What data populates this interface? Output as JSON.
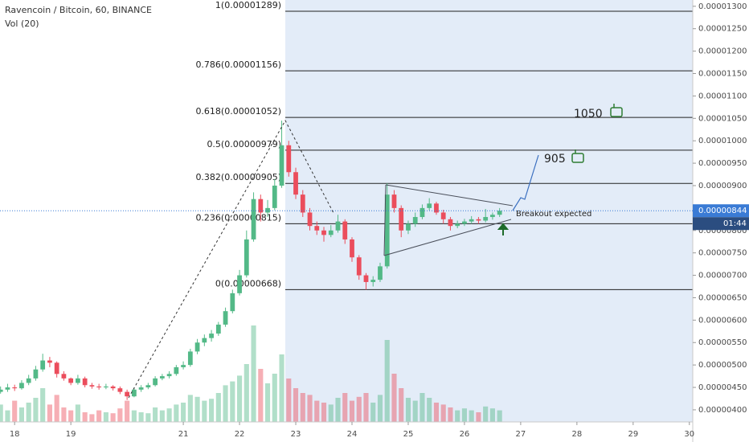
{
  "chart_data": {
    "type": "candlestick",
    "title": "Ravencoin / Bitcoin, 60, BINANCE",
    "volume_label": "Vol (20)",
    "up_color": "#53b987",
    "down_color": "#eb4d5c",
    "xlim": [
      17.74,
      30.06
    ],
    "xticks": [
      18,
      19,
      21,
      22,
      23,
      24,
      25,
      26,
      27,
      28,
      29,
      30
    ],
    "ylim": [
      3.73e-06,
      1.314e-05
    ],
    "yticks": [
      {
        "value": 4e-06,
        "label": "0.00000400"
      },
      {
        "value": 4.5e-06,
        "label": "0.00000450"
      },
      {
        "value": 5e-06,
        "label": "0.00000500"
      },
      {
        "value": 5.5e-06,
        "label": "0.00000550"
      },
      {
        "value": 6e-06,
        "label": "0.00000600"
      },
      {
        "value": 6.5e-06,
        "label": "0.00000650"
      },
      {
        "value": 7e-06,
        "label": "0.00000700"
      },
      {
        "value": 7.5e-06,
        "label": "0.00000750"
      },
      {
        "value": 8e-06,
        "label": "0.00000800"
      },
      {
        "value": 8.5e-06,
        "label": "0.00000850"
      },
      {
        "value": 9e-06,
        "label": "0.00000900"
      },
      {
        "value": 9.5e-06,
        "label": "0.00000950"
      },
      {
        "value": 1e-05,
        "label": "0.00001000"
      },
      {
        "value": 1.05e-05,
        "label": "0.00001050"
      },
      {
        "value": 1.1e-05,
        "label": "0.00001100"
      },
      {
        "value": 1.15e-05,
        "label": "0.00001150"
      },
      {
        "value": 1.2e-05,
        "label": "0.00001200"
      },
      {
        "value": 1.25e-05,
        "label": "0.00001250"
      },
      {
        "value": 1.3e-05,
        "label": "0.00001300"
      }
    ],
    "grid": false,
    "fib_levels": [
      {
        "label": "1(0.00001289)",
        "value": 1.289e-05
      },
      {
        "label": "0.786(0.00001156)",
        "value": 1.156e-05
      },
      {
        "label": "0.618(0.00001052)",
        "value": 1.052e-05
      },
      {
        "label": "0.5(0.00000979)",
        "value": 9.79e-06
      },
      {
        "label": "0.382(0.00000905)",
        "value": 9.05e-06
      },
      {
        "label": "0.236(0.00000815)",
        "value": 8.15e-06
      },
      {
        "label": "0(0.00000668)",
        "value": 6.68e-06
      }
    ],
    "current_price": {
      "value": 8.44e-06,
      "label": "0.00000844"
    },
    "countdown": "01:44",
    "annotations": [
      "1050",
      "905",
      "Breakout expected"
    ],
    "x": [
      17.75,
      17.875,
      18,
      18.125,
      18.25,
      18.375,
      18.5,
      18.625,
      18.75,
      18.875,
      19,
      19.125,
      19.25,
      19.375,
      19.5,
      19.625,
      19.75,
      19.875,
      20,
      20.125,
      20.25,
      20.375,
      20.5,
      20.625,
      20.75,
      20.875,
      21,
      21.125,
      21.25,
      21.375,
      21.5,
      21.625,
      21.75,
      21.875,
      22,
      22.125,
      22.25,
      22.375,
      22.5,
      22.625,
      22.75,
      22.875,
      23,
      23.125,
      23.25,
      23.375,
      23.5,
      23.625,
      23.75,
      23.875,
      24,
      24.125,
      24.25,
      24.375,
      24.5,
      24.625,
      24.75,
      24.875,
      25,
      25.125,
      25.25,
      25.375,
      25.5,
      25.625,
      25.75,
      25.875,
      26,
      26.125,
      26.25,
      26.375,
      26.5,
      26.625
    ],
    "candles": [
      [
        4.4e-06,
        4.52e-06,
        4.36e-06,
        4.45e-06
      ],
      [
        4.45e-06,
        4.58e-06,
        4.4e-06,
        4.5e-06
      ],
      [
        4.5e-06,
        4.56e-06,
        4.42e-06,
        4.48e-06
      ],
      [
        4.48e-06,
        4.66e-06,
        4.45e-06,
        4.6e-06
      ],
      [
        4.6e-06,
        4.78e-06,
        4.55e-06,
        4.7e-06
      ],
      [
        4.7e-06,
        4.98e-06,
        4.65e-06,
        4.9e-06
      ],
      [
        4.9e-06,
        5.25e-06,
        4.85e-06,
        5.1e-06
      ],
      [
        5.1e-06,
        5.18e-06,
        4.95e-06,
        5.05e-06
      ],
      [
        5.05e-06,
        5.08e-06,
        4.72e-06,
        4.8e-06
      ],
      [
        4.8e-06,
        4.86e-06,
        4.65e-06,
        4.7e-06
      ],
      [
        4.7e-06,
        4.72e-06,
        4.55e-06,
        4.6e-06
      ],
      [
        4.6e-06,
        4.78e-06,
        4.56e-06,
        4.7e-06
      ],
      [
        4.7e-06,
        4.74e-06,
        4.5e-06,
        4.55e-06
      ],
      [
        4.55e-06,
        4.6e-06,
        4.47e-06,
        4.52e-06
      ],
      [
        4.52e-06,
        4.58e-06,
        4.45e-06,
        4.5e-06
      ],
      [
        4.5e-06,
        4.58e-06,
        4.46e-06,
        4.52e-06
      ],
      [
        4.52e-06,
        4.55e-06,
        4.43e-06,
        4.48e-06
      ],
      [
        4.48e-06,
        4.52e-06,
        4.35e-06,
        4.4e-06
      ],
      [
        4.4e-06,
        4.45e-06,
        4.22e-06,
        4.3e-06
      ],
      [
        4.3e-06,
        4.5e-06,
        4.28e-06,
        4.45e-06
      ],
      [
        4.45e-06,
        4.55e-06,
        4.4e-06,
        4.5e-06
      ],
      [
        4.5e-06,
        4.6e-06,
        4.46e-06,
        4.55e-06
      ],
      [
        4.55e-06,
        4.75e-06,
        4.52e-06,
        4.7e-06
      ],
      [
        4.7e-06,
        4.8e-06,
        4.66e-06,
        4.75e-06
      ],
      [
        4.75e-06,
        4.86e-06,
        4.7e-06,
        4.8e-06
      ],
      [
        4.8e-06,
        5e-06,
        4.76e-06,
        4.95e-06
      ],
      [
        4.95e-06,
        5.08e-06,
        4.9e-06,
        5e-06
      ],
      [
        5e-06,
        5.36e-06,
        4.96e-06,
        5.3e-06
      ],
      [
        5.3e-06,
        5.58e-06,
        5.24e-06,
        5.5e-06
      ],
      [
        5.5e-06,
        5.68e-06,
        5.42e-06,
        5.6e-06
      ],
      [
        5.6e-06,
        5.78e-06,
        5.52e-06,
        5.7e-06
      ],
      [
        5.7e-06,
        5.96e-06,
        5.65e-06,
        5.9e-06
      ],
      [
        5.9e-06,
        6.28e-06,
        5.85e-06,
        6.2e-06
      ],
      [
        6.2e-06,
        6.68e-06,
        6.15e-06,
        6.6e-06
      ],
      [
        6.6e-06,
        7.12e-06,
        6.55e-06,
        7e-06
      ],
      [
        7e-06,
        8e-06,
        6.95e-06,
        7.8e-06
      ],
      [
        7.8e-06,
        8.85e-06,
        7.75e-06,
        8.7e-06
      ],
      [
        8.7e-06,
        8.8e-06,
        8.2e-06,
        8.4e-06
      ],
      [
        8.4e-06,
        8.68e-06,
        8.3e-06,
        8.5e-06
      ],
      [
        8.5e-06,
        9.15e-06,
        8.45e-06,
        9e-06
      ],
      [
        9e-06,
        1.045e-05,
        8.95e-06,
        9.9e-06
      ],
      [
        9.9e-06,
        1e-05,
        9.2e-06,
        9.3e-06
      ],
      [
        9.3e-06,
        9.4e-06,
        8.7e-06,
        8.8e-06
      ],
      [
        8.8e-06,
        8.9e-06,
        8.3e-06,
        8.4e-06
      ],
      [
        8.4e-06,
        8.5e-06,
        8e-06,
        8.1e-06
      ],
      [
        8.1e-06,
        8.2e-06,
        7.9e-06,
        8e-06
      ],
      [
        8e-06,
        8.08e-06,
        7.75e-06,
        7.9e-06
      ],
      [
        7.9e-06,
        8.12e-06,
        7.85e-06,
        8e-06
      ],
      [
        8e-06,
        8.35e-06,
        7.95e-06,
        8.2e-06
      ],
      [
        8.2e-06,
        8.25e-06,
        7.7e-06,
        7.8e-06
      ],
      [
        7.8e-06,
        7.85e-06,
        7.3e-06,
        7.4e-06
      ],
      [
        7.4e-06,
        7.45e-06,
        6.9e-06,
        7e-06
      ],
      [
        7e-06,
        7.05e-06,
        6.68e-06,
        6.85e-06
      ],
      [
        6.85e-06,
        6.98e-06,
        6.75e-06,
        6.9e-06
      ],
      [
        6.9e-06,
        7.28e-06,
        6.85e-06,
        7.2e-06
      ],
      [
        7.2e-06,
        9.05e-06,
        7.15e-06,
        8.8e-06
      ],
      [
        8.8e-06,
        8.9e-06,
        8.4e-06,
        8.5e-06
      ],
      [
        8.5e-06,
        8.56e-06,
        7.85e-06,
        8e-06
      ],
      [
        8e-06,
        8.22e-06,
        7.92e-06,
        8.15e-06
      ],
      [
        8.15e-06,
        8.4e-06,
        8.08e-06,
        8.3e-06
      ],
      [
        8.3e-06,
        8.58e-06,
        8.25e-06,
        8.5e-06
      ],
      [
        8.5e-06,
        8.72e-06,
        8.45e-06,
        8.6e-06
      ],
      [
        8.6e-06,
        8.64e-06,
        8.35e-06,
        8.4e-06
      ],
      [
        8.4e-06,
        8.46e-06,
        8.15e-06,
        8.25e-06
      ],
      [
        8.25e-06,
        8.3e-06,
        8e-06,
        8.1e-06
      ],
      [
        8.1e-06,
        8.22e-06,
        8.05e-06,
        8.15e-06
      ],
      [
        8.15e-06,
        8.26e-06,
        8.1e-06,
        8.2e-06
      ],
      [
        8.2e-06,
        8.32e-06,
        8.15e-06,
        8.25e-06
      ],
      [
        8.25e-06,
        8.3e-06,
        8.15e-06,
        8.22e-06
      ],
      [
        8.22e-06,
        8.48e-06,
        8.18e-06,
        8.3e-06
      ],
      [
        8.3e-06,
        8.4e-06,
        8.24e-06,
        8.35e-06
      ],
      [
        8.35e-06,
        8.5e-06,
        8.3e-06,
        8.44e-06
      ]
    ],
    "volume": [
      18,
      12,
      22,
      15,
      20,
      25,
      35,
      18,
      28,
      15,
      12,
      18,
      10,
      8,
      12,
      10,
      9,
      14,
      22,
      12,
      10,
      9,
      15,
      12,
      14,
      18,
      20,
      28,
      26,
      22,
      24,
      30,
      38,
      42,
      48,
      60,
      100,
      55,
      40,
      50,
      70,
      45,
      35,
      30,
      28,
      22,
      20,
      18,
      25,
      30,
      22,
      26,
      30,
      20,
      28,
      85,
      50,
      35,
      25,
      22,
      30,
      25,
      20,
      18,
      15,
      12,
      14,
      12,
      10,
      16,
      14,
      12
    ]
  }
}
